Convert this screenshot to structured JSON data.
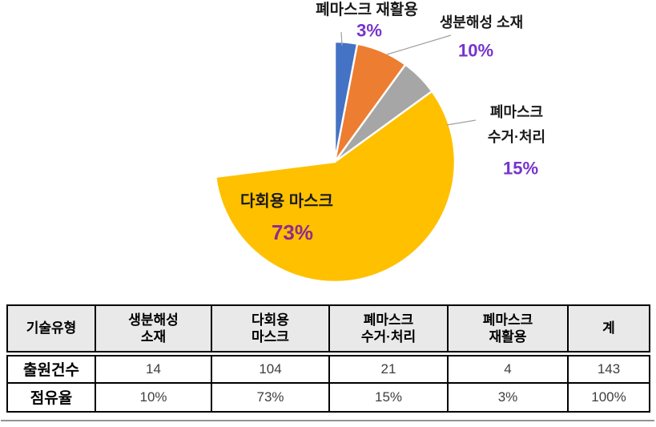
{
  "chart_data": {
    "type": "pie",
    "title": "",
    "categories": [
      "폐마스크 재활용",
      "생분해성 소재",
      "폐마스크 수거·처리",
      "다회용 마스크"
    ],
    "values": [
      3,
      10,
      15,
      73
    ],
    "colors": [
      "#4472C4",
      "#ED7D31",
      "#A6A6A6",
      "#FFC000"
    ],
    "slice_names": [
      "waste-mask-recycling",
      "biodegradable-material",
      "waste-mask-collection-treatment",
      "reusable-mask"
    ],
    "start_angle_deg": 0,
    "direction": "clockwise",
    "legend": "none",
    "data_label_format": "category + percent"
  },
  "colors": {
    "purple_pct": "#7733CC",
    "purple_pct_on_yellow": "#8E2D8A",
    "label_black": "#1a1a1a",
    "table_header_bg": "#E9E9E9",
    "leader_line": "#A0A0A0"
  },
  "pie_labels": {
    "recycling": {
      "name": "폐마스크 재활용",
      "pct": "3%"
    },
    "bio": {
      "name": "생분해성 소재",
      "pct": "10%"
    },
    "collection": {
      "name": "폐마스크\n수거·처리",
      "pct": "15%"
    },
    "reusable": {
      "name": "다회용 마스크",
      "pct": "73%"
    }
  },
  "table": {
    "header": [
      "기술유형",
      "생분해성\n소재",
      "다회용\n마스크",
      "폐마스크\n수거·처리",
      "폐마스크\n재활용",
      "계"
    ],
    "rows": [
      {
        "label": "출원건수",
        "values": [
          "14",
          "104",
          "21",
          "4",
          "143"
        ]
      },
      {
        "label": "점유율",
        "values": [
          "10%",
          "73%",
          "15%",
          "3%",
          "100%"
        ]
      }
    ]
  }
}
